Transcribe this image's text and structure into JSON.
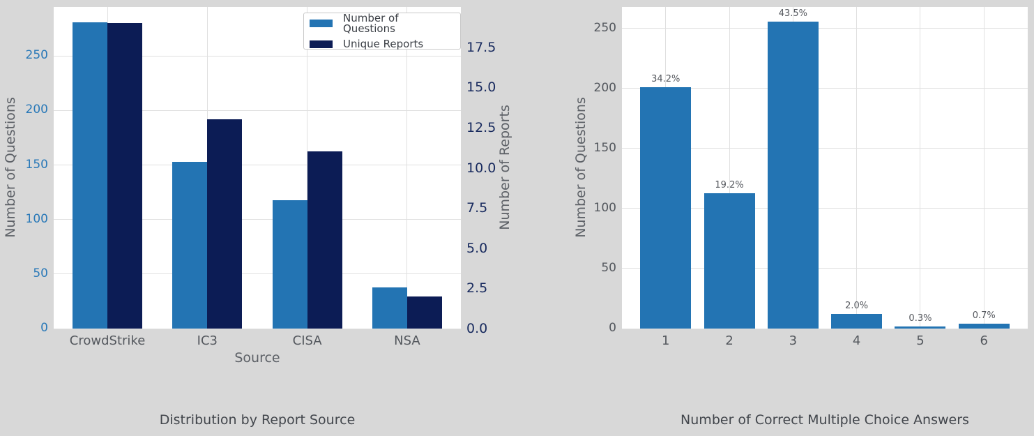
{
  "colors": {
    "figure_bg": "#d8d8d8",
    "plot_bg": "#ffffff",
    "grid": "#e0e0e0",
    "blue": "#2374b3",
    "navy": "#0c1c55",
    "tick_blue": "#2a79b8",
    "tick_navy": "#182a5e",
    "tick_gray": "#53575d",
    "axis_label_gray": "#5c6066",
    "caption_gray": "#42464c",
    "legend_text": "#3b3f45",
    "legend_border": "#c9c9c9",
    "pct_label": "#55585e"
  },
  "chart_data": [
    {
      "type": "bar",
      "title": "Distribution by Report Source",
      "xlabel": "Source",
      "ylabel_left": "Number of Questions",
      "ylabel_right": "Number of Reports",
      "categories": [
        "CrowdStrike",
        "IC3",
        "CISA",
        "NSA"
      ],
      "series": [
        {
          "name": "Number of Questions",
          "axis": "left",
          "values": [
            281,
            153,
            118,
            38
          ]
        },
        {
          "name": "Unique Reports",
          "axis": "right",
          "values": [
            19,
            13,
            11,
            2
          ]
        }
      ],
      "left_axis": {
        "tick_labels": [
          "0",
          "50",
          "100",
          "150",
          "200",
          "250"
        ],
        "tick_values": [
          0,
          50,
          100,
          150,
          200,
          250
        ],
        "ylim": [
          0,
          295
        ]
      },
      "right_axis": {
        "tick_labels": [
          "0.0",
          "2.5",
          "5.0",
          "7.5",
          "10.0",
          "12.5",
          "15.0",
          "17.5"
        ],
        "tick_values": [
          0,
          2.5,
          5,
          7.5,
          10,
          12.5,
          15,
          17.5
        ],
        "ylim": [
          0,
          20
        ]
      },
      "legend": {
        "entries": [
          "Number of Questions",
          "Unique Reports"
        ],
        "position": "upper right"
      },
      "grid": true
    },
    {
      "type": "bar",
      "title": "Number of Correct Multiple Choice Answers",
      "xlabel": "",
      "ylabel": "Number of Questions",
      "categories": [
        "1",
        "2",
        "3",
        "4",
        "5",
        "6"
      ],
      "values": [
        201,
        113,
        256,
        12,
        2,
        4
      ],
      "bar_labels": [
        "34.2%",
        "19.2%",
        "43.5%",
        "2.0%",
        "0.3%",
        "0.7%"
      ],
      "y_axis": {
        "tick_labels": [
          "0",
          "50",
          "100",
          "150",
          "200",
          "250"
        ],
        "tick_values": [
          0,
          50,
          100,
          150,
          200,
          250
        ],
        "ylim": [
          0,
          268
        ]
      },
      "grid": true
    }
  ]
}
